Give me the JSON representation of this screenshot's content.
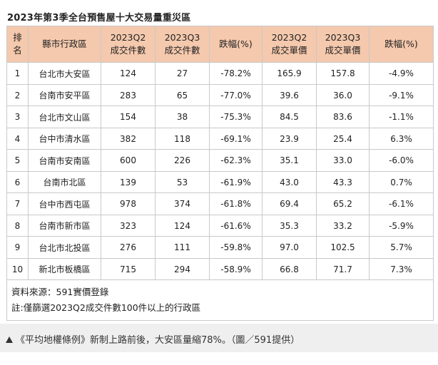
{
  "title": "2023年第3季全台預售屋十大交易量重災區",
  "table": {
    "headers": [
      [
        "排",
        "名"
      ],
      [
        "縣市行政區"
      ],
      [
        "2023Q2",
        "成交件數"
      ],
      [
        "2023Q3",
        "成交件數"
      ],
      [
        "跌幅(%)"
      ],
      [
        "2023Q2",
        "成交單價"
      ],
      [
        "2023Q3",
        "成交單價"
      ],
      [
        "跌幅(%)"
      ]
    ],
    "rows": [
      [
        "1",
        "台北市大安區",
        "124",
        "27",
        "-78.2%",
        "165.9",
        "157.8",
        "-4.9%"
      ],
      [
        "2",
        "台南市安平區",
        "283",
        "65",
        "-77.0%",
        "39.6",
        "36.0",
        "-9.1%"
      ],
      [
        "3",
        "台北市文山區",
        "154",
        "38",
        "-75.3%",
        "84.5",
        "83.6",
        "-1.1%"
      ],
      [
        "4",
        "台中市清水區",
        "382",
        "118",
        "-69.1%",
        "23.9",
        "25.4",
        "6.3%"
      ],
      [
        "5",
        "台南市安南區",
        "600",
        "226",
        "-62.3%",
        "35.1",
        "33.0",
        "-6.0%"
      ],
      [
        "6",
        "台南市北區",
        "139",
        "53",
        "-61.9%",
        "43.0",
        "43.3",
        "0.7%"
      ],
      [
        "7",
        "台中市西屯區",
        "978",
        "374",
        "-61.8%",
        "69.4",
        "65.2",
        "-6.1%"
      ],
      [
        "8",
        "台南市新市區",
        "323",
        "124",
        "-61.6%",
        "35.3",
        "33.2",
        "-5.9%"
      ],
      [
        "9",
        "台北市北投區",
        "276",
        "111",
        "-59.8%",
        "97.0",
        "102.5",
        "5.7%"
      ],
      [
        "10",
        "新北市板橋區",
        "715",
        "294",
        "-58.9%",
        "66.8",
        "71.7",
        "7.3%"
      ]
    ],
    "source": "資料來源：591實價登錄",
    "note": "註:僅篩選2023Q2成交件數100件以上的行政區"
  },
  "caption": {
    "icon": "triangle-up-icon",
    "text": "《平均地權條例》新制上路前後，大安區量縮78%。（圖／591提供）"
  }
}
